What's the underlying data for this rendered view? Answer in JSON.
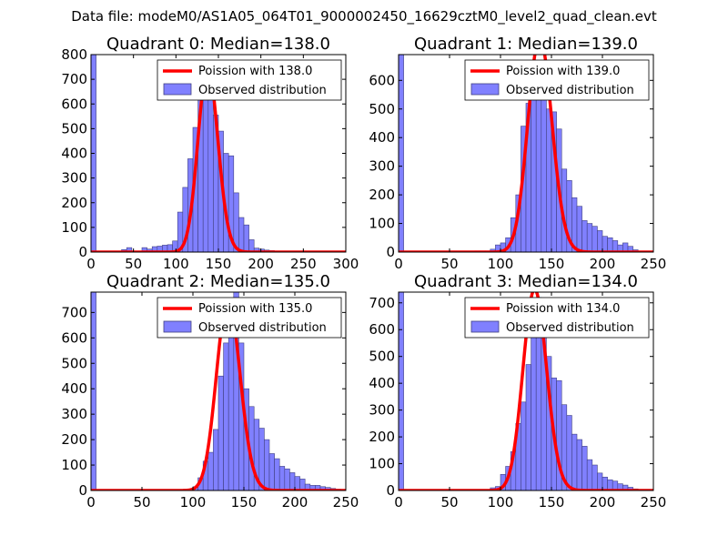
{
  "figure_title": "Data file: modeM0/AS1A05_064T01_9000002450_16629cztM0_level2_quad_clean.evt",
  "colors": {
    "hist_fill": "#8080ff",
    "hist_edge": "#404080",
    "poisson": "#ff0000"
  },
  "chart_data": [
    {
      "type": "bar",
      "title": "Quadrant 0: Median=138.0",
      "xlim": [
        0,
        300
      ],
      "ylim": [
        0,
        800
      ],
      "xticks": [
        0,
        50,
        100,
        150,
        200,
        250,
        300
      ],
      "yticks": [
        0,
        100,
        200,
        300,
        400,
        500,
        600,
        700,
        800
      ],
      "legend": {
        "location": "top-right",
        "entries": [
          "Poission with 138.0",
          "Observed distribution"
        ]
      },
      "bin_width": 6,
      "bins": [
        [
          0,
          800
        ],
        [
          6,
          0
        ],
        [
          12,
          0
        ],
        [
          18,
          2
        ],
        [
          24,
          2
        ],
        [
          30,
          4
        ],
        [
          36,
          10
        ],
        [
          42,
          18
        ],
        [
          48,
          4
        ],
        [
          54,
          3
        ],
        [
          60,
          18
        ],
        [
          66,
          12
        ],
        [
          72,
          22
        ],
        [
          78,
          24
        ],
        [
          84,
          28
        ],
        [
          90,
          30
        ],
        [
          96,
          45
        ],
        [
          102,
          162
        ],
        [
          108,
          262
        ],
        [
          114,
          378
        ],
        [
          120,
          505
        ],
        [
          126,
          635
        ],
        [
          132,
          650
        ],
        [
          138,
          665
        ],
        [
          144,
          555
        ],
        [
          150,
          490
        ],
        [
          156,
          400
        ],
        [
          162,
          390
        ],
        [
          168,
          240
        ],
        [
          174,
          140
        ],
        [
          180,
          110
        ],
        [
          186,
          50
        ],
        [
          192,
          16
        ],
        [
          198,
          12
        ],
        [
          204,
          8
        ],
        [
          210,
          6
        ],
        [
          216,
          4
        ],
        [
          222,
          2
        ],
        [
          228,
          2
        ]
      ],
      "poisson_mean": 138.0,
      "poisson_scale": 750
    },
    {
      "type": "bar",
      "title": "Quadrant 1: Median=139.0",
      "xlim": [
        0,
        250
      ],
      "ylim": [
        0,
        690
      ],
      "xticks": [
        0,
        50,
        100,
        150,
        200,
        250
      ],
      "yticks": [
        0,
        100,
        200,
        300,
        400,
        500,
        600
      ],
      "legend": {
        "location": "top-right",
        "entries": [
          "Poission with 139.0",
          "Observed distribution"
        ]
      },
      "bin_width": 5,
      "bins": [
        [
          0,
          690
        ],
        [
          5,
          0
        ],
        [
          10,
          0
        ],
        [
          15,
          0
        ],
        [
          20,
          0
        ],
        [
          25,
          2
        ],
        [
          30,
          0
        ],
        [
          35,
          0
        ],
        [
          40,
          2
        ],
        [
          45,
          0
        ],
        [
          50,
          0
        ],
        [
          55,
          2
        ],
        [
          60,
          0
        ],
        [
          65,
          2
        ],
        [
          70,
          2
        ],
        [
          75,
          4
        ],
        [
          80,
          4
        ],
        [
          85,
          4
        ],
        [
          90,
          10
        ],
        [
          95,
          25
        ],
        [
          100,
          32
        ],
        [
          105,
          50
        ],
        [
          110,
          120
        ],
        [
          115,
          200
        ],
        [
          120,
          440
        ],
        [
          125,
          520
        ],
        [
          130,
          560
        ],
        [
          135,
          620
        ],
        [
          140,
          650
        ],
        [
          145,
          500
        ],
        [
          150,
          490
        ],
        [
          155,
          430
        ],
        [
          160,
          290
        ],
        [
          165,
          250
        ],
        [
          170,
          190
        ],
        [
          175,
          160
        ],
        [
          180,
          110
        ],
        [
          185,
          100
        ],
        [
          190,
          90
        ],
        [
          195,
          75
        ],
        [
          200,
          55
        ],
        [
          205,
          50
        ],
        [
          210,
          40
        ],
        [
          215,
          25
        ],
        [
          220,
          32
        ],
        [
          225,
          20
        ],
        [
          230,
          8
        ]
      ],
      "poisson_mean": 139.0,
      "poisson_scale": 750
    },
    {
      "type": "bar",
      "title": "Quadrant 2: Median=135.0",
      "xlim": [
        0,
        250
      ],
      "ylim": [
        0,
        780
      ],
      "xticks": [
        0,
        50,
        100,
        150,
        200,
        250
      ],
      "yticks": [
        0,
        100,
        200,
        300,
        400,
        500,
        600,
        700
      ],
      "legend": {
        "location": "top-right",
        "entries": [
          "Poission with 135.0",
          "Observed distribution"
        ]
      },
      "bin_width": 5,
      "bins": [
        [
          0,
          780
        ],
        [
          5,
          0
        ],
        [
          10,
          0
        ],
        [
          15,
          0
        ],
        [
          20,
          0
        ],
        [
          25,
          0
        ],
        [
          30,
          0
        ],
        [
          35,
          0
        ],
        [
          40,
          0
        ],
        [
          45,
          0
        ],
        [
          50,
          0
        ],
        [
          55,
          0
        ],
        [
          60,
          0
        ],
        [
          65,
          0
        ],
        [
          70,
          0
        ],
        [
          75,
          0
        ],
        [
          80,
          0
        ],
        [
          85,
          0
        ],
        [
          90,
          2
        ],
        [
          95,
          5
        ],
        [
          100,
          15
        ],
        [
          105,
          50
        ],
        [
          110,
          115
        ],
        [
          115,
          150
        ],
        [
          120,
          240
        ],
        [
          125,
          450
        ],
        [
          130,
          580
        ],
        [
          135,
          660
        ],
        [
          140,
          780
        ],
        [
          145,
          580
        ],
        [
          150,
          400
        ],
        [
          155,
          330
        ],
        [
          160,
          280
        ],
        [
          165,
          245
        ],
        [
          170,
          200
        ],
        [
          175,
          145
        ],
        [
          180,
          125
        ],
        [
          185,
          95
        ],
        [
          190,
          85
        ],
        [
          195,
          70
        ],
        [
          200,
          55
        ],
        [
          205,
          45
        ],
        [
          210,
          25
        ],
        [
          215,
          20
        ],
        [
          220,
          20
        ],
        [
          225,
          15
        ],
        [
          230,
          12
        ],
        [
          235,
          8
        ],
        [
          240,
          5
        ]
      ],
      "poisson_mean": 135.0,
      "poisson_scale": 750
    },
    {
      "type": "bar",
      "title": "Quadrant 3: Median=134.0",
      "xlim": [
        0,
        250
      ],
      "ylim": [
        0,
        740
      ],
      "xticks": [
        0,
        50,
        100,
        150,
        200,
        250
      ],
      "yticks": [
        0,
        100,
        200,
        300,
        400,
        500,
        600,
        700
      ],
      "legend": {
        "location": "top-right",
        "entries": [
          "Poission with 134.0",
          "Observed distribution"
        ]
      },
      "bin_width": 5,
      "bins": [
        [
          0,
          740
        ],
        [
          5,
          0
        ],
        [
          10,
          0
        ],
        [
          15,
          0
        ],
        [
          20,
          0
        ],
        [
          25,
          0
        ],
        [
          30,
          0
        ],
        [
          35,
          0
        ],
        [
          40,
          0
        ],
        [
          45,
          0
        ],
        [
          50,
          0
        ],
        [
          55,
          0
        ],
        [
          60,
          0
        ],
        [
          65,
          0
        ],
        [
          70,
          0
        ],
        [
          75,
          0
        ],
        [
          80,
          0
        ],
        [
          85,
          2
        ],
        [
          90,
          10
        ],
        [
          95,
          15
        ],
        [
          100,
          60
        ],
        [
          105,
          90
        ],
        [
          110,
          145
        ],
        [
          115,
          250
        ],
        [
          120,
          330
        ],
        [
          125,
          470
        ],
        [
          130,
          610
        ],
        [
          135,
          720
        ],
        [
          140,
          650
        ],
        [
          145,
          500
        ],
        [
          150,
          420
        ],
        [
          155,
          410
        ],
        [
          160,
          320
        ],
        [
          165,
          280
        ],
        [
          170,
          210
        ],
        [
          175,
          190
        ],
        [
          180,
          165
        ],
        [
          185,
          115
        ],
        [
          190,
          95
        ],
        [
          195,
          65
        ],
        [
          200,
          50
        ],
        [
          205,
          40
        ],
        [
          210,
          35
        ],
        [
          215,
          25
        ],
        [
          220,
          20
        ],
        [
          225,
          12
        ],
        [
          230,
          6
        ],
        [
          235,
          3
        ],
        [
          240,
          2
        ]
      ],
      "poisson_mean": 134.0,
      "poisson_scale": 750
    }
  ]
}
